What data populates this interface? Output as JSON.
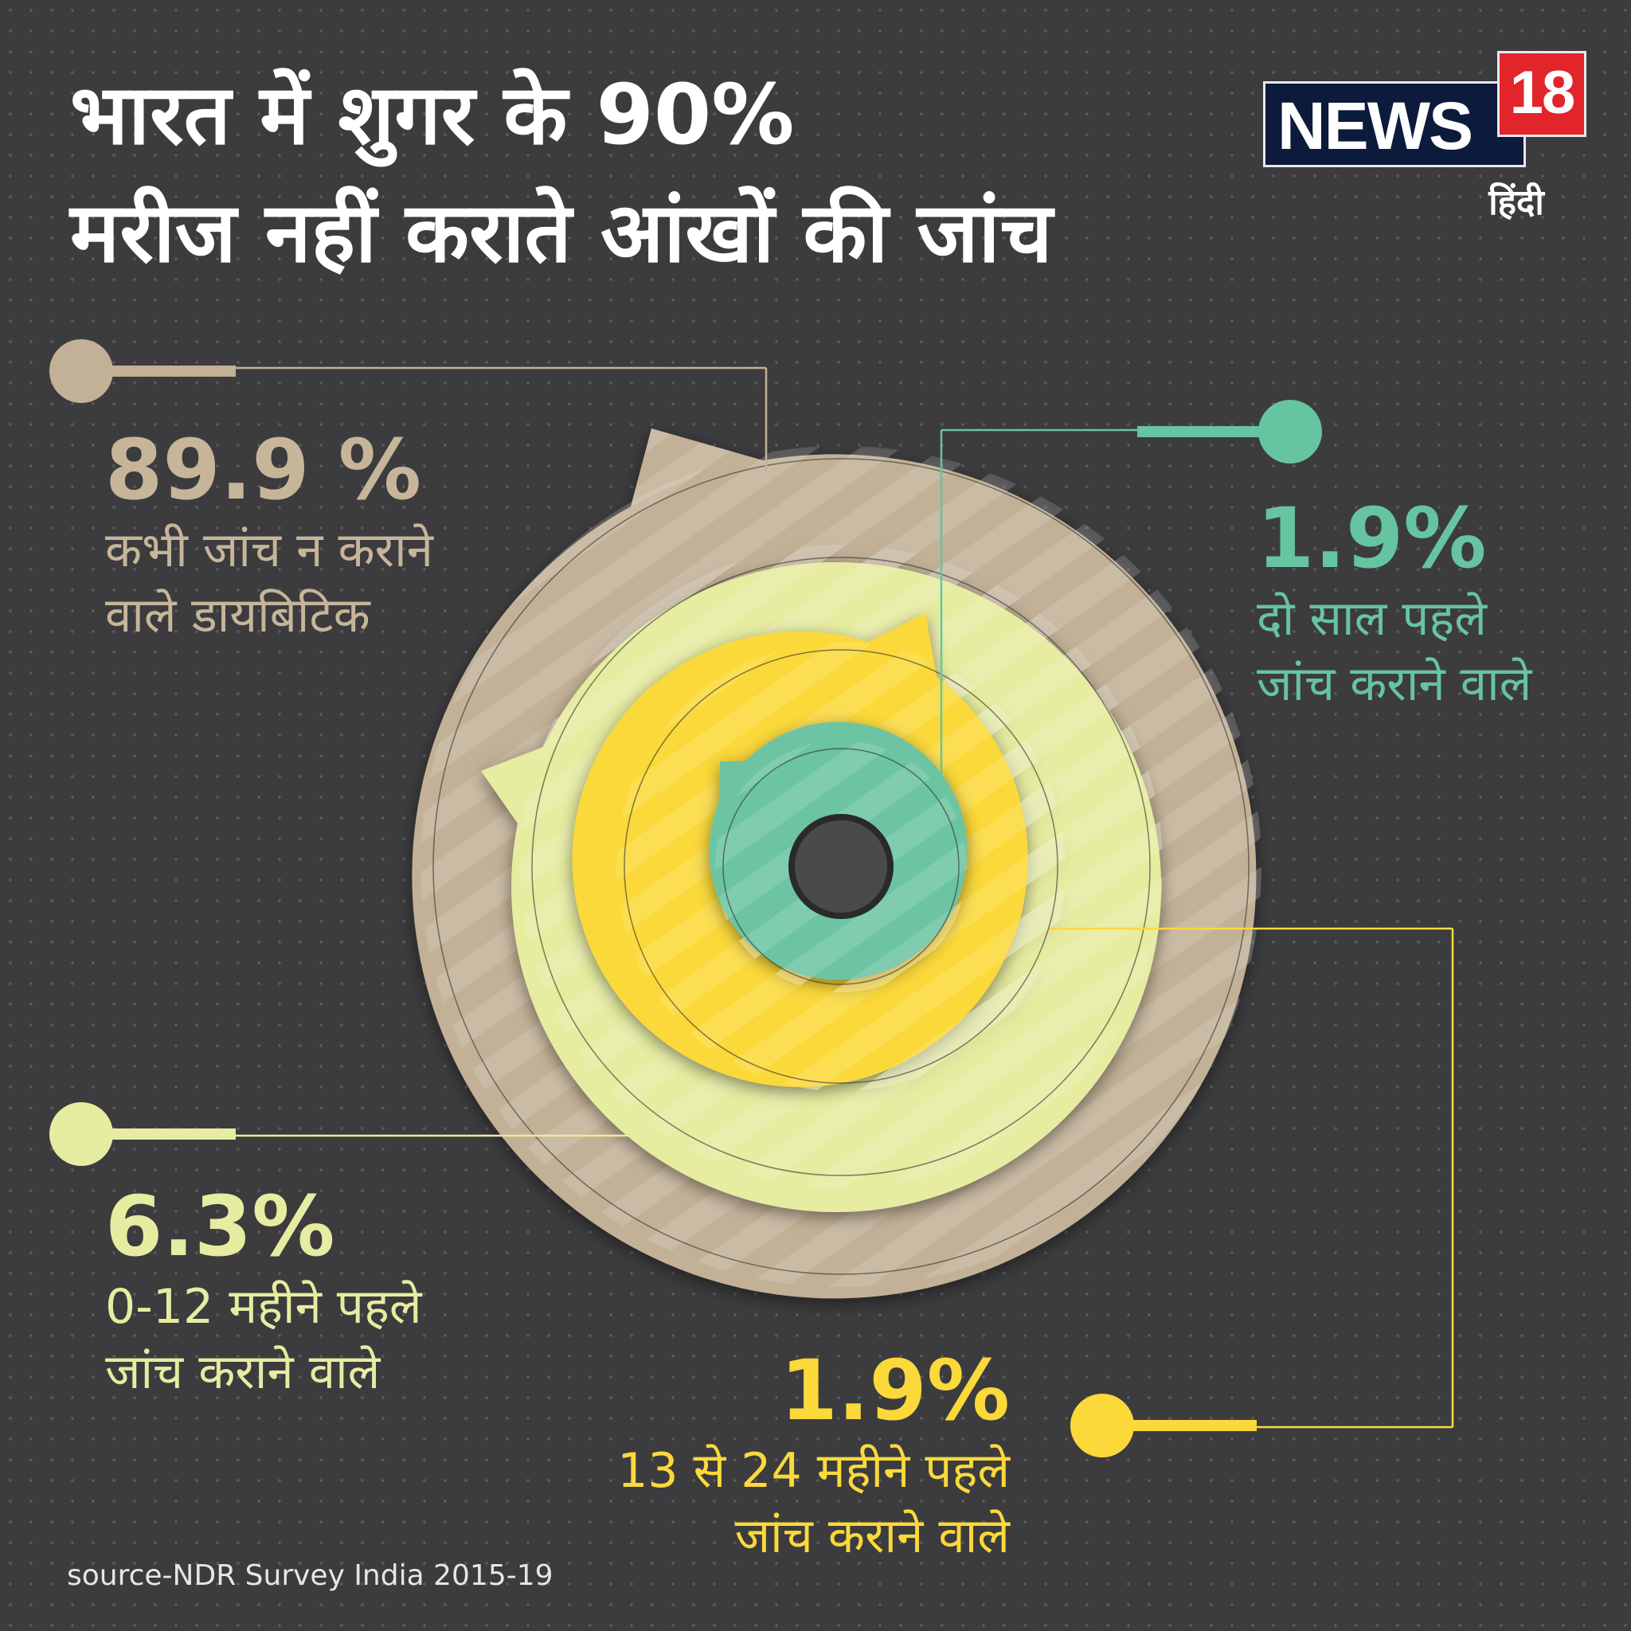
{
  "title": {
    "line1": "भारत में शुगर के 90%",
    "line2": "मरीज नहीं कराते आंखों की जांच"
  },
  "logo": {
    "news": "NEWS",
    "number": "18",
    "hindi": "हिंदी"
  },
  "segments": [
    {
      "value": "89.9 %",
      "line1": "कभी जांच न कराने",
      "line2": "वाले डायबिटिक",
      "color": "#c2b197"
    },
    {
      "value": "1.9%",
      "line1": "दो साल पहले",
      "line2": "जांच कराने वाले",
      "color": "#66c4a1"
    },
    {
      "value": "6.3%",
      "line1": "0-12 महीने पहले",
      "line2": "जांच कराने वाले",
      "color": "#e6eca0"
    },
    {
      "value": "1.9%",
      "line1": "13 से 24 महीने पहले",
      "line2": "जांच कराने वाले",
      "color": "#fbd93a"
    }
  ],
  "source": "source-NDR Survey India 2015-19",
  "colors": {
    "background": "#3c3c3e",
    "ring_outer": "#c2b197",
    "ring_2": "#e6eca0",
    "ring_3": "#fbd93a",
    "ring_4": "#6cc4a3",
    "center": "#4a4a4c"
  }
}
